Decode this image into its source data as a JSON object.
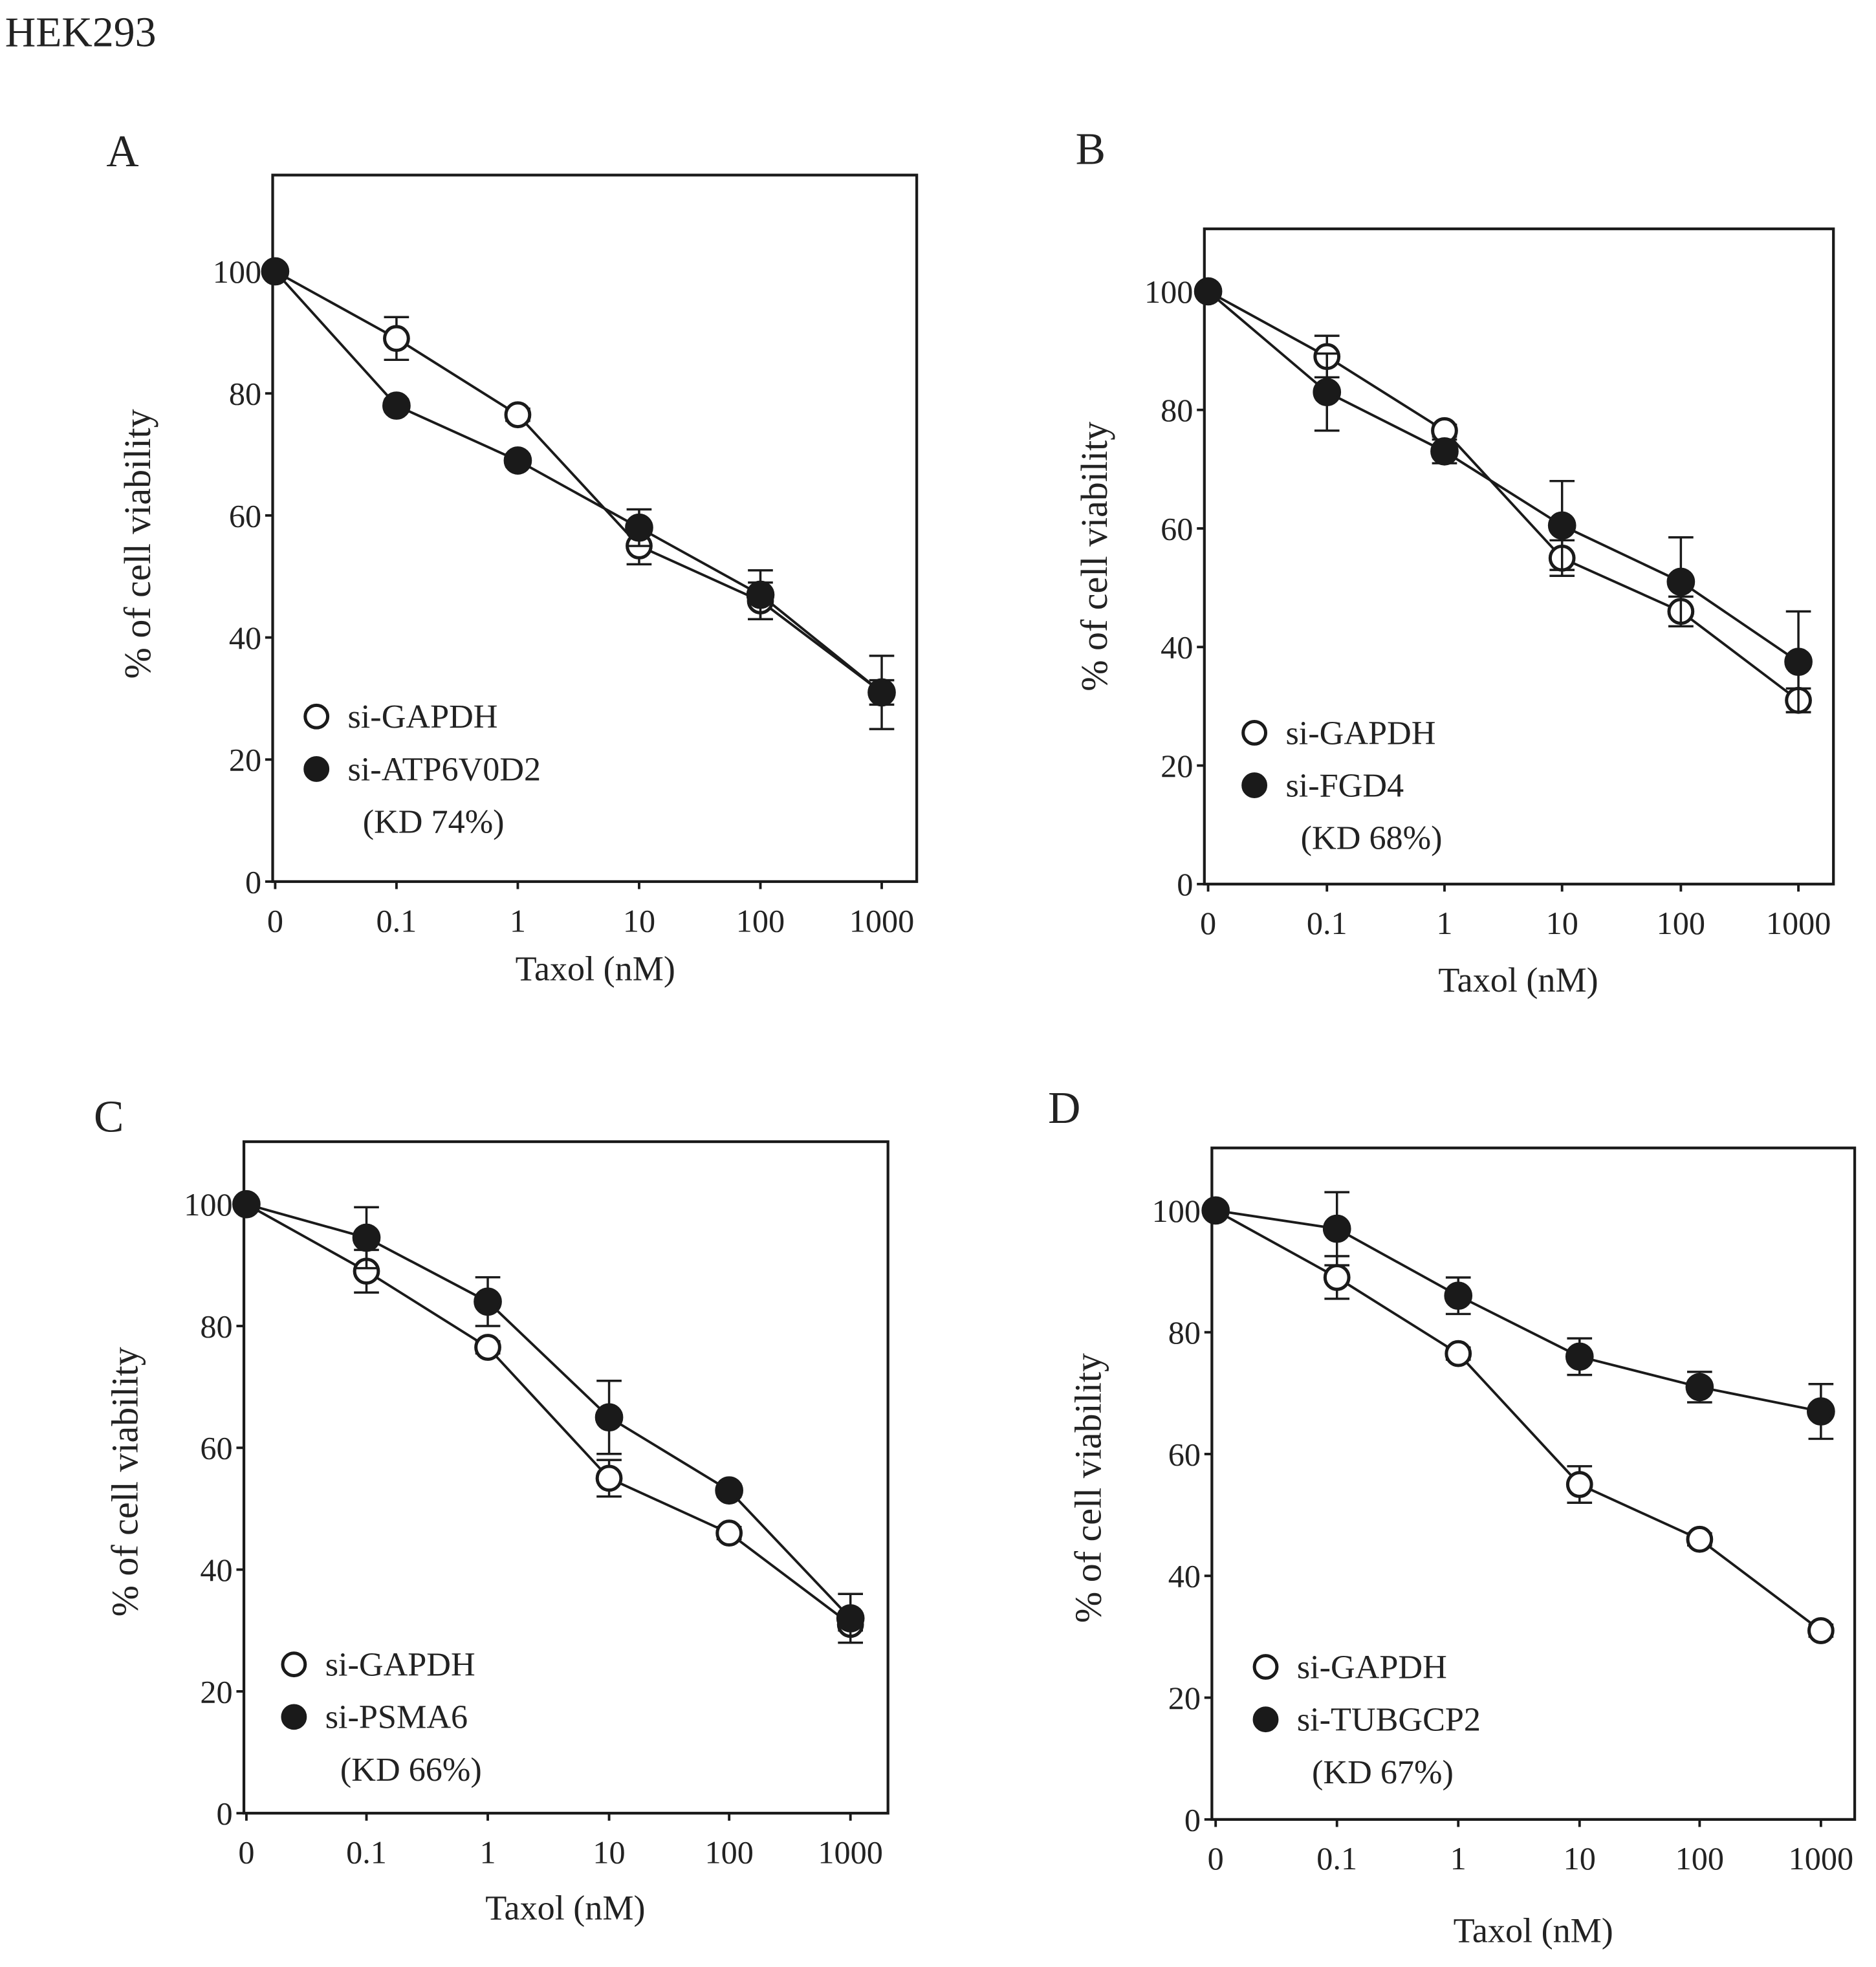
{
  "figure_title": "HEK293",
  "colors": {
    "ink": "#1a1a1a"
  },
  "chart_data": [
    {
      "type": "line",
      "panel": "A",
      "xlabel": "Taxol (nM)",
      "ylabel": "% of cell viability",
      "x_ticks": [
        "0",
        "0.1",
        "1",
        "10",
        "100",
        "1000"
      ],
      "y_ticks": [
        "0",
        "20",
        "40",
        "60",
        "80",
        "100"
      ],
      "ylim": [
        0,
        110
      ],
      "kd_note": "(KD 74%)",
      "series": [
        {
          "name": "si-GAPDH",
          "marker": "open",
          "values": [
            100,
            89,
            76.5,
            55,
            46,
            31
          ],
          "errors": [
            0,
            3.5,
            1,
            3,
            3,
            2
          ]
        },
        {
          "name": "si-ATP6V0D2",
          "marker": "filled",
          "values": [
            100,
            78,
            69,
            58,
            47,
            31
          ],
          "errors": [
            0,
            1,
            1,
            3,
            4,
            6
          ]
        }
      ]
    },
    {
      "type": "line",
      "panel": "B",
      "xlabel": "Taxol (nM)",
      "ylabel": "% of cell viability",
      "x_ticks": [
        "0",
        "0.1",
        "1",
        "10",
        "100",
        "1000"
      ],
      "y_ticks": [
        "0",
        "20",
        "40",
        "60",
        "80",
        "100"
      ],
      "ylim": [
        0,
        100
      ],
      "kd_note": "(KD 68%)",
      "series": [
        {
          "name": "si-GAPDH",
          "marker": "open",
          "values": [
            100,
            89,
            76.5,
            55,
            46,
            31
          ],
          "errors": [
            0,
            3.5,
            1,
            3,
            2.5,
            2
          ]
        },
        {
          "name": "si-FGD4",
          "marker": "filled",
          "values": [
            100,
            83,
            73,
            60.5,
            51,
            37.5
          ],
          "errors": [
            0,
            6.5,
            2,
            7.5,
            7.5,
            8.5
          ]
        }
      ]
    },
    {
      "type": "line",
      "panel": "C",
      "xlabel": "Taxol (nM)",
      "ylabel": "% of cell viability",
      "x_ticks": [
        "0",
        "0.1",
        "1",
        "10",
        "100",
        "1000"
      ],
      "y_ticks": [
        "0",
        "20",
        "40",
        "60",
        "80",
        "100"
      ],
      "ylim": [
        0,
        100
      ],
      "kd_note": "(KD 66%)",
      "series": [
        {
          "name": "si-GAPDH",
          "marker": "open",
          "values": [
            100,
            89,
            76.5,
            55,
            46,
            31
          ],
          "errors": [
            0,
            3.5,
            1,
            3,
            1,
            1
          ]
        },
        {
          "name": "si-PSMA6",
          "marker": "filled",
          "values": [
            100,
            94.5,
            84,
            65,
            53,
            32
          ],
          "errors": [
            0,
            5,
            4,
            6,
            1,
            4
          ]
        }
      ]
    },
    {
      "type": "line",
      "panel": "D",
      "xlabel": "Taxol (nM)",
      "ylabel": "% of cell viability",
      "x_ticks": [
        "0",
        "0.1",
        "1",
        "10",
        "100",
        "1000"
      ],
      "y_ticks": [
        "0",
        "20",
        "40",
        "60",
        "80",
        "100"
      ],
      "ylim": [
        0,
        100
      ],
      "kd_note": "(KD 67%)",
      "series": [
        {
          "name": "si-GAPDH",
          "marker": "open",
          "values": [
            100,
            89,
            76.5,
            55,
            46,
            31
          ],
          "errors": [
            0,
            3.5,
            1,
            3,
            1,
            1
          ]
        },
        {
          "name": "si-TUBGCP2",
          "marker": "filled",
          "values": [
            100,
            97,
            86,
            76,
            71,
            67
          ],
          "errors": [
            0,
            6,
            3,
            3,
            2.5,
            4.5
          ]
        }
      ]
    }
  ]
}
